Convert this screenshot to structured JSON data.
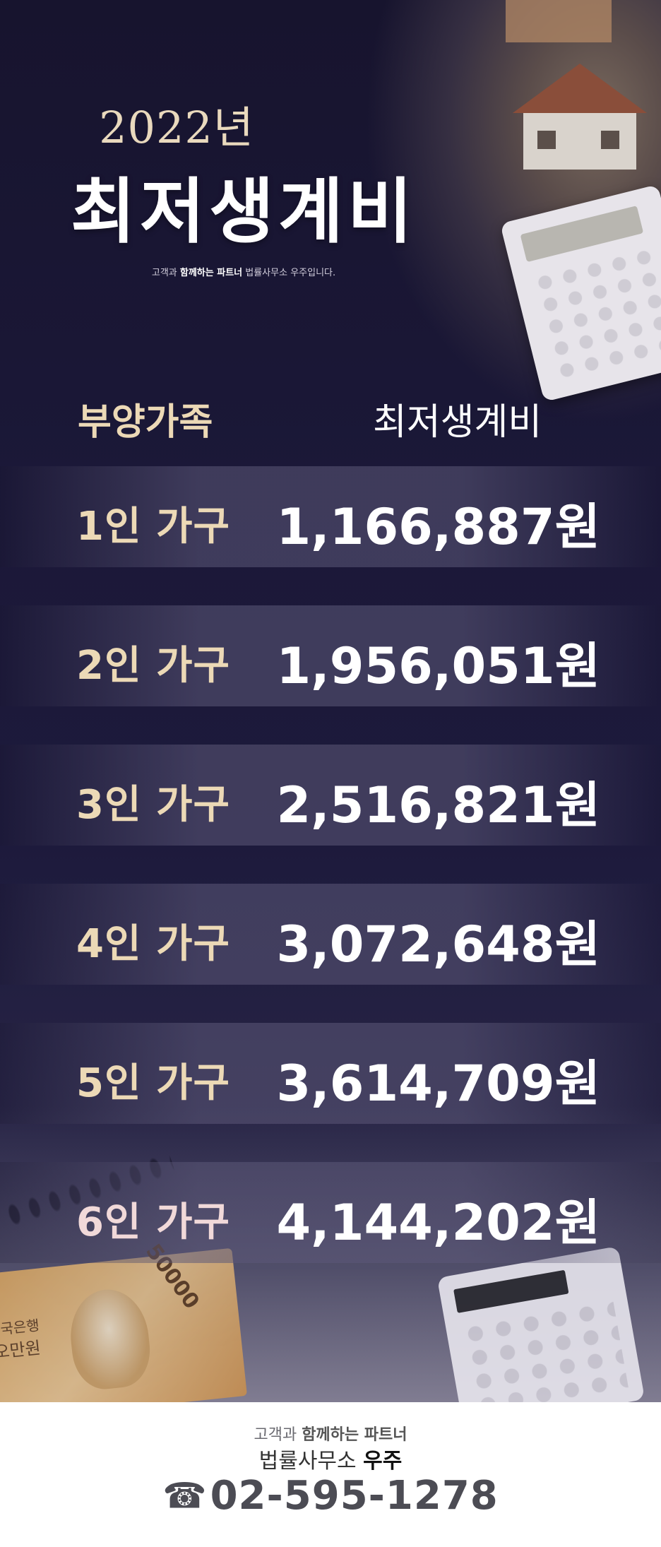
{
  "header": {
    "year": "2022년",
    "title": "최저생계비",
    "subtitle_pre": "고객과 ",
    "subtitle_bold": "함께하는 파트너",
    "subtitle_post": " 법률사무소 우주입니다."
  },
  "table": {
    "col_left": "부양가족",
    "col_right": "최저생계비",
    "rows": [
      {
        "household": "1인 가구",
        "amount": "1,166,887원"
      },
      {
        "household": "2인 가구",
        "amount": "1,956,051원"
      },
      {
        "household": "3인 가구",
        "amount": "2,516,821원"
      },
      {
        "household": "4인 가구",
        "amount": "3,072,648원"
      },
      {
        "household": "5인 가구",
        "amount": "3,614,709원"
      },
      {
        "household": "6인 가구",
        "amount": "4,144,202원"
      }
    ]
  },
  "decor": {
    "banknote_value": "50000",
    "banknote_bank": "한국은행",
    "banknote_name": "오만원"
  },
  "footer": {
    "tag_pre": "고객과 ",
    "tag_bold": "함께하는 파트너",
    "firm_pre": "법률사무소 ",
    "firm_bold": "우주",
    "phone_icon": "☎",
    "phone": "02-595-1278"
  }
}
